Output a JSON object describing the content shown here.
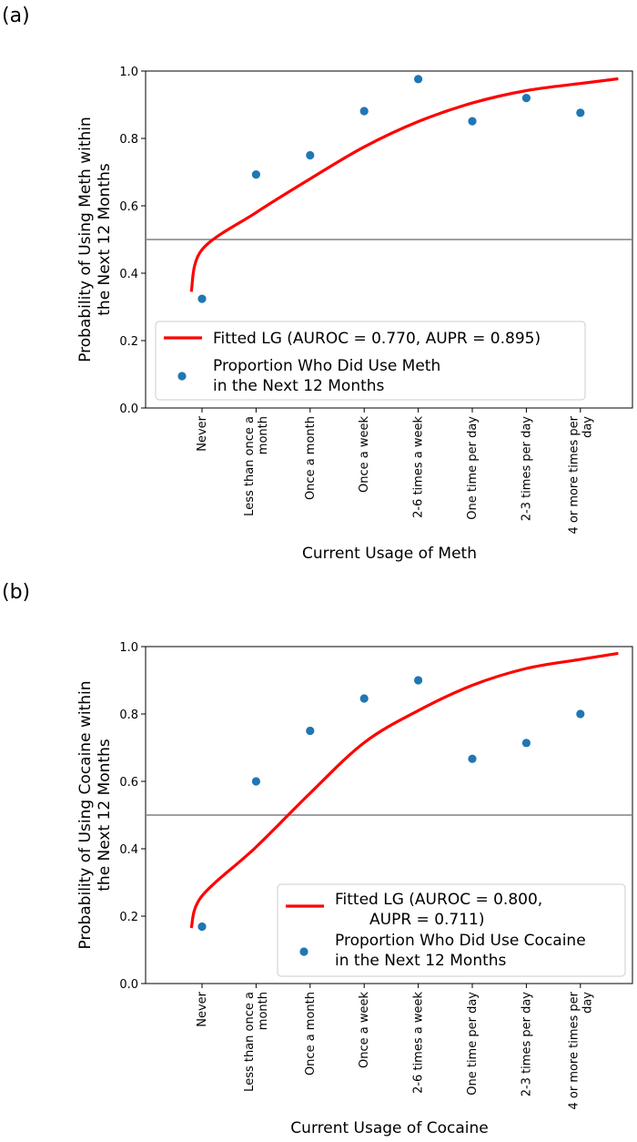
{
  "figure": {
    "panels": [
      "(a)",
      "(b)"
    ]
  },
  "chart_data": [
    {
      "type": "scatter",
      "panel_label": "(a)",
      "xlabel": "Current Usage of Meth",
      "ylabel": [
        "Probability of Using Meth within",
        "the Next 12 Months"
      ],
      "categories": [
        [
          "Never"
        ],
        [
          "Less than once a",
          "month"
        ],
        [
          "Once a month"
        ],
        [
          "Once a week"
        ],
        [
          "2-6 times a week"
        ],
        [
          "One time per day"
        ],
        [
          "2-3 times per day"
        ],
        [
          "4 or more times per",
          "day"
        ]
      ],
      "ylim": [
        0,
        1.0
      ],
      "yticks": [
        "0.0",
        "0.2",
        "0.4",
        "0.6",
        "0.8",
        "1.0"
      ],
      "threshold": 0.5,
      "series": [
        {
          "name": "Proportion Who Did Use Meth in the Next 12 Months",
          "kind": "points",
          "color": "#1f77b4",
          "values": [
            0.324,
            0.693,
            0.75,
            0.881,
            0.976,
            0.851,
            0.92,
            0.876
          ]
        },
        {
          "name": "Fitted LG (AUROC = 0.770, AUPR = 0.895)",
          "kind": "curve",
          "color": "#ff0000",
          "x": [
            -0.2,
            0,
            1,
            2,
            3,
            4,
            5,
            6,
            7,
            7.7
          ],
          "values": [
            0.345,
            0.47,
            0.58,
            0.68,
            0.775,
            0.85,
            0.905,
            0.942,
            0.963,
            0.977
          ]
        }
      ],
      "legend": {
        "position": "lower-right",
        "entries": [
          [
            "Fitted LG (AUROC = 0.770, AUPR = 0.895)"
          ],
          [
            "Proportion Who Did Use Meth",
            "in the Next 12 Months"
          ]
        ]
      }
    },
    {
      "type": "scatter",
      "panel_label": "(b)",
      "xlabel": "Current Usage of Cocaine",
      "ylabel": [
        "Probability of Using Cocaine within",
        "the Next 12 Months"
      ],
      "categories": [
        [
          "Never"
        ],
        [
          "Less than once a",
          "month"
        ],
        [
          "Once a month"
        ],
        [
          "Once a week"
        ],
        [
          "2-6 times a week"
        ],
        [
          "One time per day"
        ],
        [
          "2-3 times per day"
        ],
        [
          "4 or more times per",
          "day"
        ]
      ],
      "ylim": [
        0,
        1.0
      ],
      "yticks": [
        "0.0",
        "0.2",
        "0.4",
        "0.6",
        "0.8",
        "1.0"
      ],
      "threshold": 0.5,
      "series": [
        {
          "name": "Proportion Who Did Use Cocaine in the Next 12 Months",
          "kind": "points",
          "color": "#1f77b4",
          "values": [
            0.169,
            0.6,
            0.75,
            0.846,
            0.9,
            0.667,
            0.714,
            0.8
          ]
        },
        {
          "name": "Fitted LG (AUROC = 0.800, AUPR = 0.711)",
          "kind": "curve",
          "color": "#ff0000",
          "x": [
            -0.2,
            0,
            1,
            2,
            3,
            4,
            5,
            6,
            7,
            7.7
          ],
          "values": [
            0.165,
            0.26,
            0.405,
            0.565,
            0.715,
            0.81,
            0.885,
            0.935,
            0.962,
            0.98
          ]
        }
      ],
      "legend": {
        "position": "lower-right",
        "entries": [
          [
            "Fitted LG (AUROC = 0.800,",
            "AUPR = 0.711)"
          ],
          [
            "Proportion Who Did Use Cocaine",
            "in the Next 12 Months"
          ]
        ]
      }
    }
  ]
}
